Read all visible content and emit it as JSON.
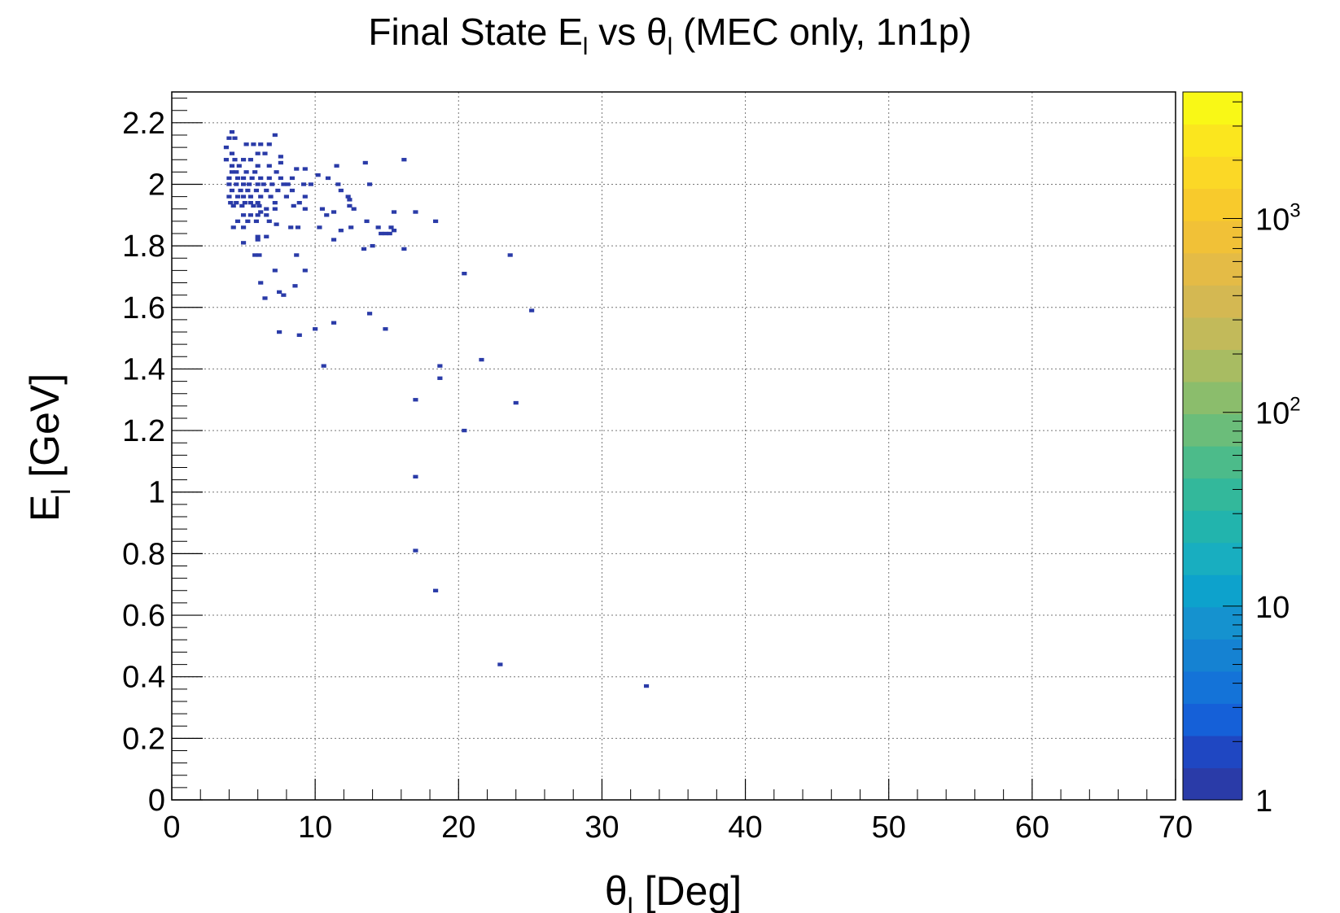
{
  "chart_data": {
    "type": "heatmap",
    "title": {
      "prefix": "Final State E",
      "sub1": "l",
      "middle": " vs θ",
      "sub2": "l",
      "suffix": " (MEC only, 1n1p)"
    },
    "xlabel": {
      "main": "θ",
      "sub": "l",
      "rest": " [Deg]"
    },
    "ylabel": {
      "main": "E",
      "sub": "l",
      "rest": " [GeV]"
    },
    "xlim": [
      0,
      70
    ],
    "ylim": [
      0,
      2.3
    ],
    "x_ticks": [
      "0",
      "10",
      "20",
      "30",
      "40",
      "50",
      "60",
      "70"
    ],
    "y_ticks": [
      "0",
      "0.2",
      "0.4",
      "0.6",
      "0.8",
      "1",
      "1.2",
      "1.4",
      "1.6",
      "1.8",
      "2",
      "2.2"
    ],
    "grid": true,
    "colorbar": {
      "scale": "log",
      "range": [
        1,
        4500
      ],
      "labels": [
        {
          "value": 1,
          "base": "1",
          "exp": ""
        },
        {
          "value": 10,
          "base": "10",
          "exp": ""
        },
        {
          "value": 100,
          "base": "10",
          "exp": "2"
        },
        {
          "value": 1000,
          "base": "10",
          "exp": "3"
        }
      ],
      "colors": [
        "#2a3ba8",
        "#1f47c2",
        "#1560d8",
        "#1473d8",
        "#1582d2",
        "#1592cf",
        "#0da2cc",
        "#18aec0",
        "#22b4ad",
        "#33b89b",
        "#4cbb8a",
        "#6bbd7a",
        "#8bbd6c",
        "#a8bc62",
        "#c2ba5a",
        "#d4b852",
        "#e4bb46",
        "#f1c137",
        "#f8ca2c",
        "#fbd826",
        "#fbe61e",
        "#f9f816"
      ]
    },
    "points": [
      [
        4.0,
        2.15
      ],
      [
        4.4,
        2.15
      ],
      [
        4.2,
        2.17
      ],
      [
        5.2,
        2.13
      ],
      [
        5.7,
        2.13
      ],
      [
        6.2,
        2.13
      ],
      [
        6.8,
        2.13
      ],
      [
        7.2,
        2.16
      ],
      [
        3.8,
        2.12
      ],
      [
        4.2,
        2.1
      ],
      [
        6.0,
        2.1
      ],
      [
        6.5,
        2.1
      ],
      [
        3.8,
        2.08
      ],
      [
        4.4,
        2.08
      ],
      [
        5.0,
        2.08
      ],
      [
        5.5,
        2.08
      ],
      [
        7.6,
        2.09
      ],
      [
        4.2,
        2.06
      ],
      [
        4.7,
        2.06
      ],
      [
        6.0,
        2.06
      ],
      [
        6.8,
        2.06
      ],
      [
        7.6,
        2.07
      ],
      [
        13.5,
        2.07
      ],
      [
        16.2,
        2.08
      ],
      [
        4.2,
        2.04
      ],
      [
        4.5,
        2.04
      ],
      [
        5.2,
        2.04
      ],
      [
        5.8,
        2.04
      ],
      [
        7.3,
        2.04
      ],
      [
        8.7,
        2.05
      ],
      [
        9.3,
        2.05
      ],
      [
        11.5,
        2.06
      ],
      [
        4.0,
        2.02
      ],
      [
        4.6,
        2.02
      ],
      [
        5.0,
        2.02
      ],
      [
        5.6,
        2.02
      ],
      [
        6.2,
        2.02
      ],
      [
        6.8,
        2.02
      ],
      [
        7.6,
        2.02
      ],
      [
        8.4,
        2.02
      ],
      [
        10.2,
        2.03
      ],
      [
        10.9,
        2.02
      ],
      [
        4.0,
        2.0
      ],
      [
        4.5,
        2.0
      ],
      [
        5.0,
        2.0
      ],
      [
        5.4,
        2.0
      ],
      [
        6.0,
        2.0
      ],
      [
        6.4,
        2.0
      ],
      [
        7.0,
        2.0
      ],
      [
        7.8,
        2.0
      ],
      [
        8.1,
        2.0
      ],
      [
        9.2,
        2.0
      ],
      [
        9.7,
        2.0
      ],
      [
        11.6,
        2.0
      ],
      [
        13.8,
        2.0
      ],
      [
        4.2,
        1.98
      ],
      [
        4.8,
        1.98
      ],
      [
        5.3,
        1.98
      ],
      [
        5.9,
        1.98
      ],
      [
        6.6,
        1.98
      ],
      [
        7.4,
        1.98
      ],
      [
        8.4,
        1.98
      ],
      [
        11.8,
        1.98
      ],
      [
        4.0,
        1.96
      ],
      [
        4.6,
        1.96
      ],
      [
        5.0,
        1.96
      ],
      [
        5.5,
        1.96
      ],
      [
        6.2,
        1.96
      ],
      [
        6.9,
        1.96
      ],
      [
        8.0,
        1.96
      ],
      [
        9.3,
        1.96
      ],
      [
        12.3,
        1.96
      ],
      [
        4.1,
        1.94
      ],
      [
        4.5,
        1.94
      ],
      [
        5.1,
        1.94
      ],
      [
        5.5,
        1.94
      ],
      [
        6.0,
        1.94
      ],
      [
        7.2,
        1.94
      ],
      [
        8.9,
        1.94
      ],
      [
        12.4,
        1.95
      ],
      [
        4.3,
        1.93
      ],
      [
        4.9,
        1.93
      ],
      [
        5.7,
        1.93
      ],
      [
        6.1,
        1.93
      ],
      [
        8.5,
        1.93
      ],
      [
        12.4,
        1.93
      ],
      [
        6.2,
        1.91
      ],
      [
        6.6,
        1.92
      ],
      [
        7.2,
        1.92
      ],
      [
        9.3,
        1.92
      ],
      [
        10.5,
        1.92
      ],
      [
        11.3,
        1.91
      ],
      [
        12.7,
        1.92
      ],
      [
        5.0,
        1.9
      ],
      [
        5.5,
        1.9
      ],
      [
        6.0,
        1.9
      ],
      [
        6.6,
        1.9
      ],
      [
        15.5,
        1.91
      ],
      [
        17.0,
        1.91
      ],
      [
        10.8,
        1.9
      ],
      [
        4.6,
        1.88
      ],
      [
        5.3,
        1.88
      ],
      [
        5.9,
        1.88
      ],
      [
        6.8,
        1.88
      ],
      [
        13.6,
        1.88
      ],
      [
        18.4,
        1.88
      ],
      [
        4.3,
        1.86
      ],
      [
        5.0,
        1.86
      ],
      [
        7.3,
        1.87
      ],
      [
        8.3,
        1.86
      ],
      [
        8.8,
        1.86
      ],
      [
        10.3,
        1.86
      ],
      [
        12.5,
        1.86
      ],
      [
        14.4,
        1.86
      ],
      [
        15.3,
        1.86
      ],
      [
        11.8,
        1.85
      ],
      [
        14.6,
        1.84
      ],
      [
        15.2,
        1.84
      ],
      [
        15.5,
        1.85
      ],
      [
        6.0,
        1.83
      ],
      [
        6.6,
        1.83
      ],
      [
        11.3,
        1.82
      ],
      [
        14.9,
        1.84
      ],
      [
        5.0,
        1.81
      ],
      [
        6.0,
        1.82
      ],
      [
        14.0,
        1.8
      ],
      [
        13.4,
        1.79
      ],
      [
        16.2,
        1.79
      ],
      [
        8.7,
        1.77
      ],
      [
        23.6,
        1.77
      ],
      [
        5.8,
        1.77
      ],
      [
        6.1,
        1.77
      ],
      [
        7.2,
        1.72
      ],
      [
        9.3,
        1.72
      ],
      [
        20.4,
        1.71
      ],
      [
        6.2,
        1.68
      ],
      [
        8.6,
        1.67
      ],
      [
        7.5,
        1.65
      ],
      [
        7.8,
        1.64
      ],
      [
        6.5,
        1.63
      ],
      [
        25.1,
        1.59
      ],
      [
        13.8,
        1.58
      ],
      [
        11.3,
        1.55
      ],
      [
        10.0,
        1.53
      ],
      [
        14.9,
        1.53
      ],
      [
        7.5,
        1.52
      ],
      [
        8.9,
        1.51
      ],
      [
        21.6,
        1.43
      ],
      [
        10.6,
        1.41
      ],
      [
        18.7,
        1.41
      ],
      [
        18.7,
        1.37
      ],
      [
        24.0,
        1.29
      ],
      [
        17.0,
        1.3
      ],
      [
        20.4,
        1.2
      ],
      [
        17.0,
        1.05
      ],
      [
        17.0,
        0.81
      ],
      [
        18.4,
        0.68
      ],
      [
        22.9,
        0.44
      ],
      [
        33.1,
        0.37
      ]
    ]
  }
}
